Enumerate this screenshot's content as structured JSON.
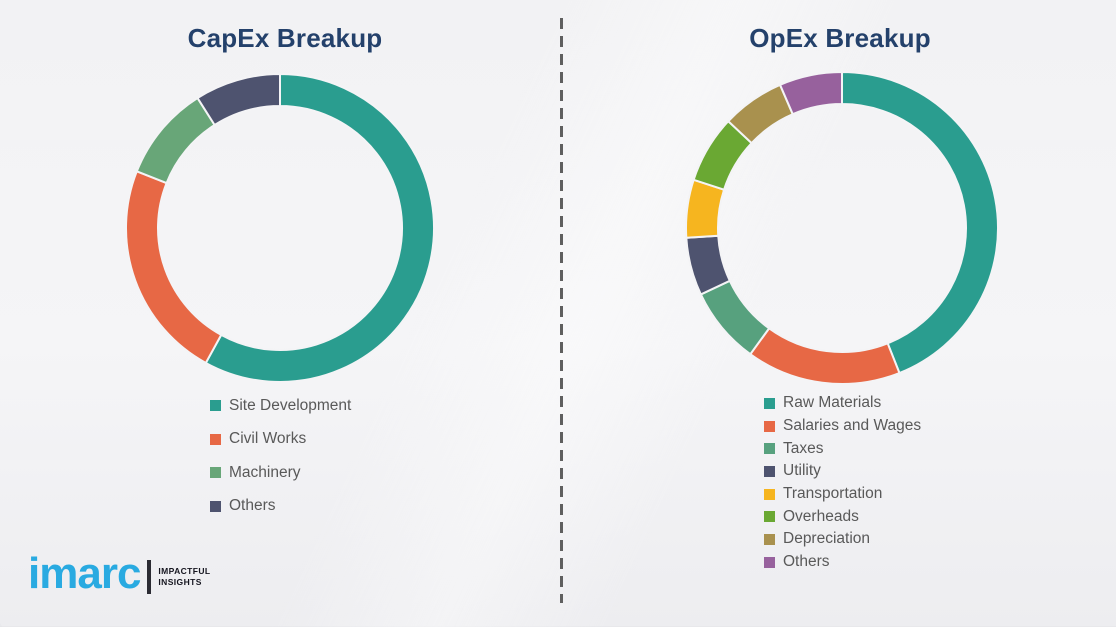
{
  "page": {
    "background_color": "#F2F2F4",
    "divider_color": "#5F5F5F",
    "title_color": "#24416B",
    "legend_text_color": "#595959"
  },
  "logo": {
    "brand": "imarc",
    "brand_color": "#29AAE1",
    "tagline_line1": "IMPACTFUL",
    "tagline_line2": "INSIGHTS"
  },
  "chart_data": [
    {
      "type": "donut",
      "title": "CapEx Breakup",
      "labels": [
        "Site Development",
        "Civil Works",
        "Machinery",
        "Others"
      ],
      "values": [
        58,
        23,
        10,
        9
      ],
      "colors": [
        "#2A9D8F",
        "#E76845",
        "#68A678",
        "#4E536F"
      ],
      "legend_position": "bottom",
      "start_angle_deg": 0,
      "direction": "clockwise"
    },
    {
      "type": "donut",
      "title": "OpEx Breakup",
      "labels": [
        "Raw Materials",
        "Salaries and Wages",
        "Taxes",
        "Utility",
        "Transportation",
        "Overheads",
        "Depreciation",
        "Others"
      ],
      "values": [
        44,
        16,
        8,
        6,
        6,
        7,
        6.5,
        6.5
      ],
      "colors": [
        "#2A9D8F",
        "#E76845",
        "#57A17E",
        "#4E536F",
        "#F6B51F",
        "#6AA833",
        "#A9914E",
        "#97619D"
      ],
      "legend_position": "bottom",
      "start_angle_deg": 0,
      "direction": "clockwise"
    }
  ]
}
